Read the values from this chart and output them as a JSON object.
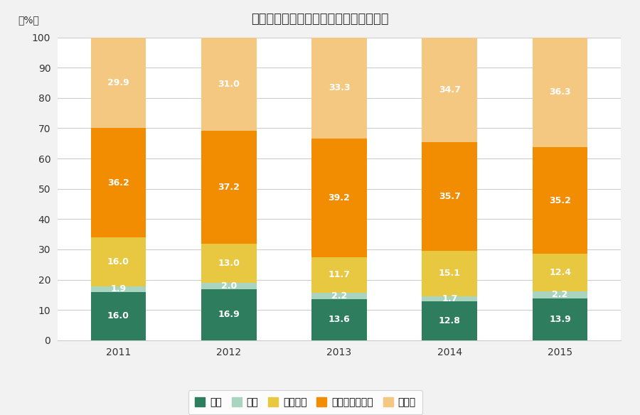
{
  "title": "申告漏れ相続財産の金額の構成比の推移",
  "years": [
    "2011",
    "2012",
    "2013",
    "2014",
    "2015"
  ],
  "categories": [
    "土地",
    "家屋",
    "有価証券",
    "現金・預貯金等",
    "その他"
  ],
  "colors": [
    "#2e7d5e",
    "#a8d4c0",
    "#e8c840",
    "#f28c00",
    "#f5c882"
  ],
  "data": {
    "土地": [
      16.0,
      16.9,
      13.6,
      12.8,
      13.9
    ],
    "家屋": [
      1.9,
      2.0,
      2.2,
      1.7,
      2.2
    ],
    "有価証券": [
      16.0,
      13.0,
      11.7,
      15.1,
      12.4
    ],
    "現金・預貯金等": [
      36.2,
      37.2,
      39.2,
      35.7,
      35.2
    ],
    "その他": [
      29.9,
      31.0,
      33.3,
      34.7,
      36.3
    ]
  },
  "ylabel": "（%）",
  "ylim": [
    0,
    100
  ],
  "yticks": [
    0,
    10,
    20,
    30,
    40,
    50,
    60,
    70,
    80,
    90,
    100
  ],
  "background_color": "#f2f2f2",
  "plot_background": "#ffffff",
  "grid_color": "#cccccc",
  "legend_box_color": "#cccccc",
  "text_color": "#333333"
}
